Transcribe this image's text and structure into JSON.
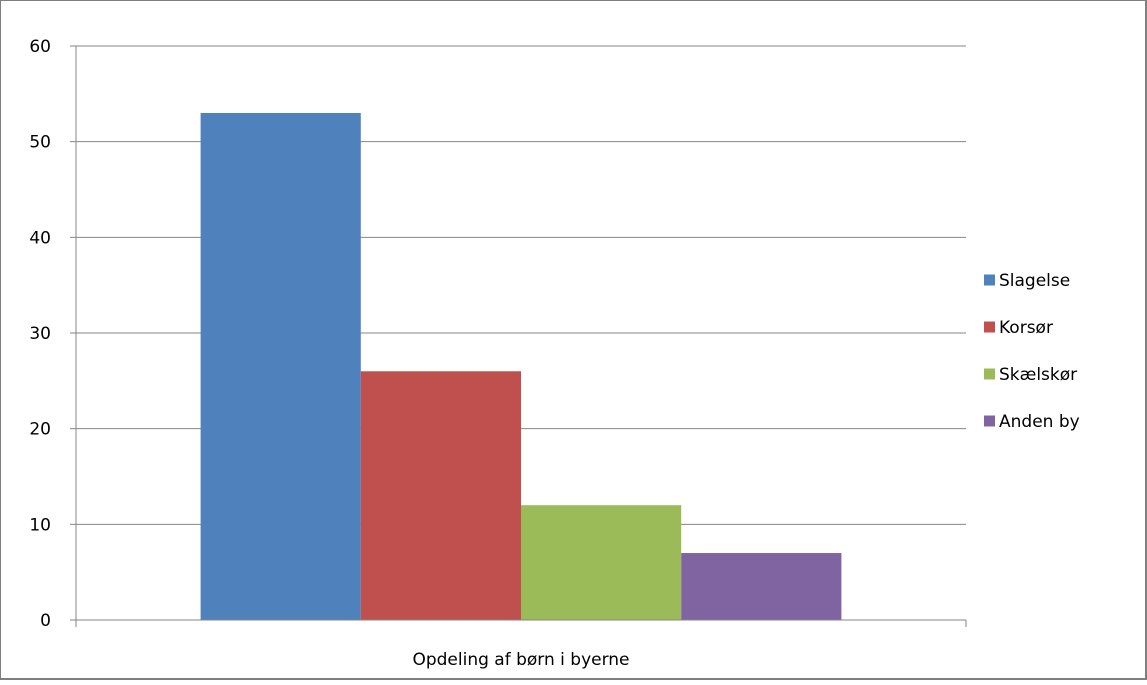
{
  "chart_data": {
    "type": "bar",
    "title": "",
    "xlabel": "",
    "ylabel": "",
    "categories": [
      "Opdeling af børn i byerne"
    ],
    "series": [
      {
        "name": "Slagelse",
        "values": [
          53
        ],
        "color": "#4f81bd"
      },
      {
        "name": "Korsør",
        "values": [
          26
        ],
        "color": "#c0504d"
      },
      {
        "name": "Skælskør",
        "values": [
          12
        ],
        "color": "#9bbb59"
      },
      {
        "name": "Anden by",
        "values": [
          7
        ],
        "color": "#8064a2"
      }
    ],
    "ylim": [
      0,
      60
    ],
    "yticks": [
      "0",
      "10",
      "20",
      "30",
      "40",
      "50",
      "60"
    ],
    "grid": true,
    "legend_position": "right"
  }
}
